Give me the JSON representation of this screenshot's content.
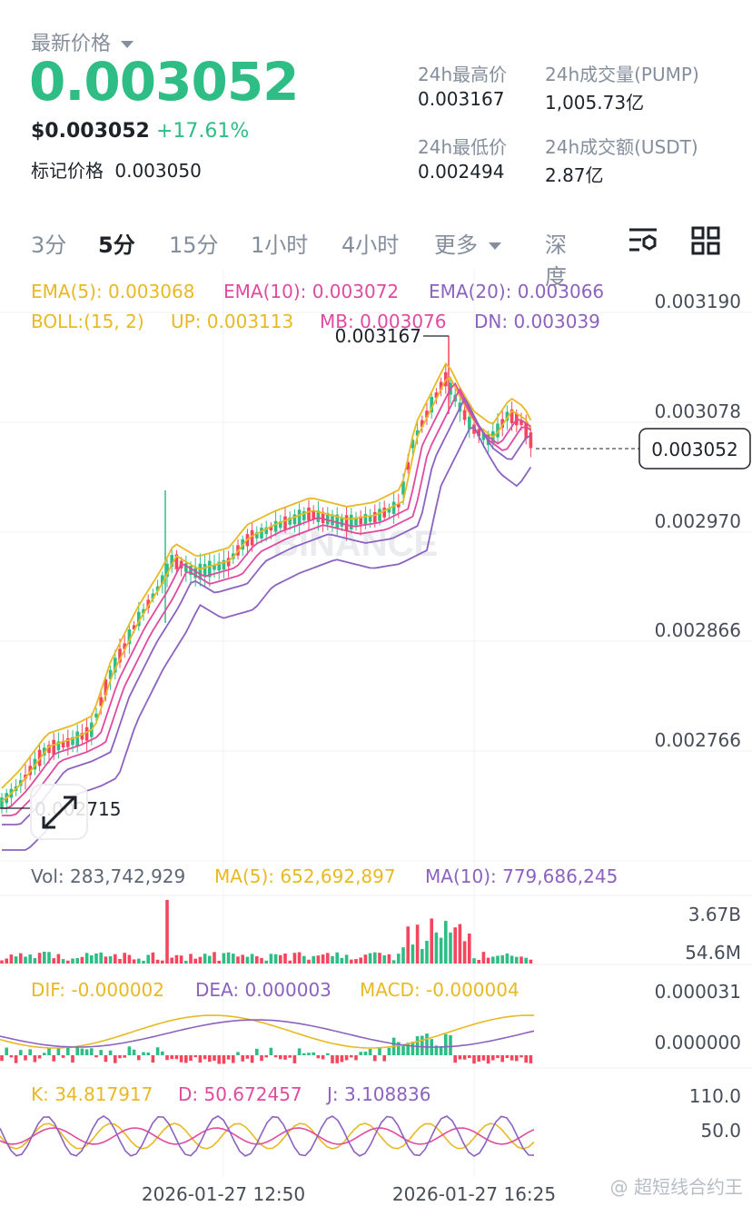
{
  "header": {
    "latest_label": "最新价格",
    "price": "0.003052",
    "usd_price": "$0.003052",
    "change": "+17.61%",
    "mark_label": "标记价格",
    "mark_price": "0.003050"
  },
  "stats": {
    "high_label": "24h最高价",
    "high": "0.003167",
    "volume_label": "24h成交量(PUMP)",
    "volume": "1,005.73亿",
    "low_label": "24h最低价",
    "low": "0.002494",
    "turnover_label": "24h成交额(USDT)",
    "turnover": "2.87亿"
  },
  "tabs": [
    {
      "label": "3分"
    },
    {
      "label": "5分",
      "active": true
    },
    {
      "label": "15分"
    },
    {
      "label": "1小时"
    },
    {
      "label": "4小时"
    },
    {
      "label": "更多"
    },
    {
      "label": "深度"
    }
  ],
  "indicators": {
    "ema5": "EMA(5): 0.003068",
    "ema10": "EMA(10): 0.003072",
    "ema20": "EMA(20): 0.003066",
    "boll": "BOLL:(15, 2)",
    "boll_up": "UP: 0.003113",
    "boll_mb": "MB: 0.003076",
    "boll_dn": "DN: 0.003039"
  },
  "price_axis": [
    "0.003190",
    "0.003078",
    "0.002970",
    "0.002866",
    "0.002766"
  ],
  "price_marker": "0.003052",
  "high_marker": "0.003167",
  "low_marker": "0.002715",
  "watermark": "BINANCE",
  "volume": {
    "label": "Vol: 283,742,929",
    "ma5": "MA(5): 652,692,897",
    "ma10": "MA(10): 779,686,245",
    "axis": [
      "3.67B",
      "54.6M"
    ]
  },
  "macd": {
    "dif": "DIF: -0.000002",
    "dea": "DEA: 0.000003",
    "macd": "MACD: -0.000004",
    "axis": [
      "0.000031",
      "0.000000"
    ]
  },
  "kdj": {
    "k": "K: 34.817917",
    "d": "D: 50.672457",
    "j": "J: 3.108836",
    "axis": [
      "110.0",
      "50.0"
    ]
  },
  "time_axis": [
    "2026-01-27 12:50",
    "2026-01-27 16:25"
  ],
  "footer_watermark": "@ 超短线合约王",
  "colors": {
    "up": "#2ebd85",
    "down": "#f6465d",
    "ema5": "#e8b923",
    "ema10": "#e04a9f",
    "ema20": "#8c62c0"
  }
}
